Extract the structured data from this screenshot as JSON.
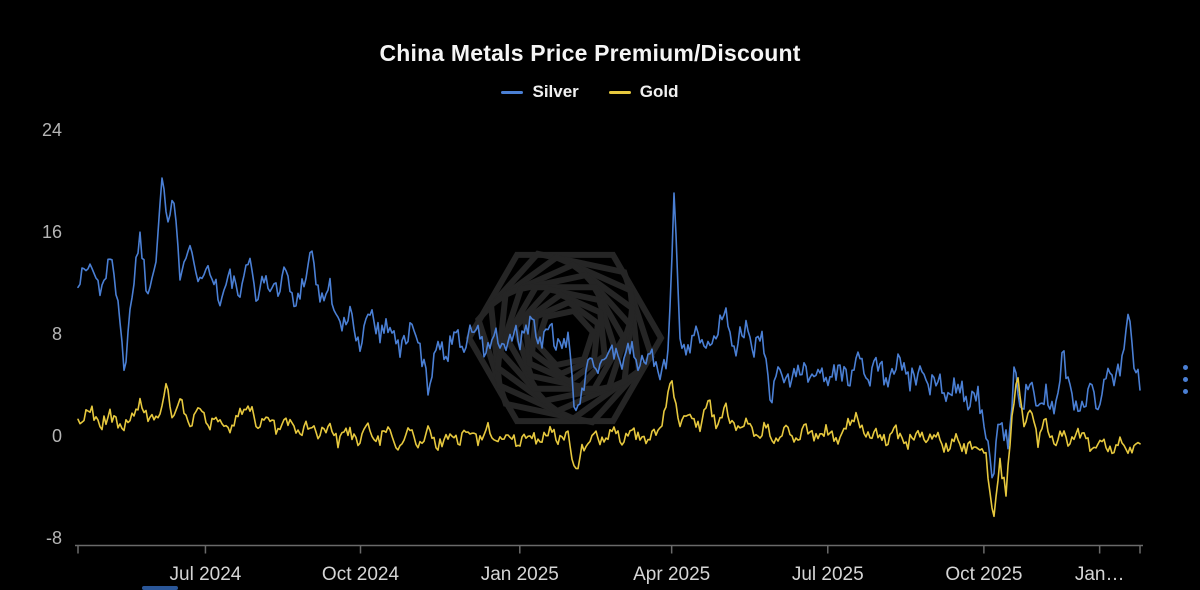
{
  "chart": {
    "colors": {
      "background": "#000000",
      "axis": "#6a6a6a",
      "x_tick_label": "#d5d5d5",
      "y_tick_label": "#b5b5b5",
      "watermark": "#252525",
      "menu_dots": "#4a7fd4"
    },
    "menu_icon": "kebab-menu-icon"
  },
  "chart_data": {
    "type": "line",
    "title": "China Metals Price Premium/Discount",
    "legend_position": "top-center",
    "grid": false,
    "x_axis": {
      "tick_labels": [
        "Jul 2024",
        "Oct 2024",
        "Jan 2025",
        "Apr 2025",
        "Jul 2025",
        "Oct 2025",
        "Jan…"
      ],
      "tick_positions": [
        0.12,
        0.266,
        0.416,
        0.559,
        0.706,
        0.853,
        0.962
      ]
    },
    "y_axis": {
      "tick_labels": [
        "24",
        "16",
        "8",
        "0",
        "-8"
      ],
      "tick_values": [
        24,
        16,
        8,
        0,
        -8
      ],
      "min": -8,
      "max": 24
    },
    "series": [
      {
        "name": "Silver",
        "color": "#4a7fd4",
        "noise_amplitude": 0.85,
        "points": [
          [
            0.0,
            12.2
          ],
          [
            0.011,
            13.5
          ],
          [
            0.021,
            11.5
          ],
          [
            0.03,
            13.8
          ],
          [
            0.038,
            11.0
          ],
          [
            0.044,
            4.8
          ],
          [
            0.051,
            11.5
          ],
          [
            0.058,
            15.8
          ],
          [
            0.066,
            11.0
          ],
          [
            0.073,
            14.0
          ],
          [
            0.079,
            20.6
          ],
          [
            0.085,
            16.5
          ],
          [
            0.089,
            18.8
          ],
          [
            0.096,
            13.0
          ],
          [
            0.105,
            15.5
          ],
          [
            0.115,
            12.0
          ],
          [
            0.124,
            13.5
          ],
          [
            0.134,
            10.5
          ],
          [
            0.143,
            12.5
          ],
          [
            0.153,
            11.0
          ],
          [
            0.162,
            13.8
          ],
          [
            0.169,
            10.8
          ],
          [
            0.176,
            12.5
          ],
          [
            0.186,
            11.2
          ],
          [
            0.195,
            13.2
          ],
          [
            0.204,
            10.0
          ],
          [
            0.214,
            12.8
          ],
          [
            0.22,
            14.5
          ],
          [
            0.228,
            10.5
          ],
          [
            0.237,
            11.8
          ],
          [
            0.247,
            8.2
          ],
          [
            0.256,
            9.5
          ],
          [
            0.266,
            7.2
          ],
          [
            0.275,
            10.2
          ],
          [
            0.284,
            8.0
          ],
          [
            0.294,
            9.0
          ],
          [
            0.303,
            6.5
          ],
          [
            0.313,
            8.5
          ],
          [
            0.322,
            7.0
          ],
          [
            0.33,
            3.6
          ],
          [
            0.337,
            7.5
          ],
          [
            0.346,
            6.0
          ],
          [
            0.355,
            8.5
          ],
          [
            0.364,
            7.0
          ],
          [
            0.374,
            8.8
          ],
          [
            0.383,
            6.5
          ],
          [
            0.393,
            8.0
          ],
          [
            0.402,
            6.2
          ],
          [
            0.411,
            8.5
          ],
          [
            0.416,
            7.0
          ],
          [
            0.426,
            9.3
          ],
          [
            0.435,
            7.0
          ],
          [
            0.444,
            8.8
          ],
          [
            0.454,
            6.5
          ],
          [
            0.463,
            7.5
          ],
          [
            0.468,
            1.9
          ],
          [
            0.475,
            3.0
          ],
          [
            0.482,
            6.5
          ],
          [
            0.492,
            5.5
          ],
          [
            0.501,
            7.2
          ],
          [
            0.51,
            5.8
          ],
          [
            0.52,
            6.8
          ],
          [
            0.529,
            5.5
          ],
          [
            0.539,
            6.5
          ],
          [
            0.548,
            5.0
          ],
          [
            0.556,
            6.0
          ],
          [
            0.561,
            19.2
          ],
          [
            0.567,
            8.0
          ],
          [
            0.574,
            6.5
          ],
          [
            0.581,
            9.0
          ],
          [
            0.59,
            6.2
          ],
          [
            0.6,
            8.0
          ],
          [
            0.609,
            9.8
          ],
          [
            0.619,
            7.0
          ],
          [
            0.628,
            8.5
          ],
          [
            0.637,
            6.5
          ],
          [
            0.644,
            8.8
          ],
          [
            0.652,
            2.4
          ],
          [
            0.659,
            5.5
          ],
          [
            0.669,
            4.2
          ],
          [
            0.678,
            5.8
          ],
          [
            0.687,
            4.5
          ],
          [
            0.697,
            5.5
          ],
          [
            0.706,
            4.2
          ],
          [
            0.716,
            5.5
          ],
          [
            0.725,
            4.2
          ],
          [
            0.734,
            6.2
          ],
          [
            0.744,
            4.5
          ],
          [
            0.753,
            5.8
          ],
          [
            0.763,
            4.0
          ],
          [
            0.772,
            6.0
          ],
          [
            0.782,
            4.2
          ],
          [
            0.791,
            5.0
          ],
          [
            0.8,
            3.6
          ],
          [
            0.81,
            4.8
          ],
          [
            0.819,
            3.2
          ],
          [
            0.829,
            4.5
          ],
          [
            0.838,
            2.6
          ],
          [
            0.847,
            3.5
          ],
          [
            0.854,
            0.6
          ],
          [
            0.861,
            -3.8
          ],
          [
            0.868,
            1.5
          ],
          [
            0.876,
            -1.0
          ],
          [
            0.882,
            5.8
          ],
          [
            0.889,
            2.0
          ],
          [
            0.896,
            4.5
          ],
          [
            0.904,
            1.5
          ],
          [
            0.911,
            3.5
          ],
          [
            0.92,
            2.0
          ],
          [
            0.927,
            6.5
          ],
          [
            0.936,
            3.0
          ],
          [
            0.943,
            2.0
          ],
          [
            0.953,
            3.5
          ],
          [
            0.962,
            2.5
          ],
          [
            0.97,
            5.5
          ],
          [
            0.976,
            4.0
          ],
          [
            0.983,
            6.0
          ],
          [
            0.989,
            9.5
          ],
          [
            0.994,
            5.5
          ],
          [
            1.0,
            4.2
          ]
        ]
      },
      {
        "name": "Gold",
        "color": "#e6c83e",
        "noise_amplitude": 0.5,
        "points": [
          [
            0.0,
            1.0
          ],
          [
            0.011,
            2.2
          ],
          [
            0.021,
            0.8
          ],
          [
            0.03,
            1.8
          ],
          [
            0.04,
            0.5
          ],
          [
            0.049,
            1.5
          ],
          [
            0.058,
            2.5
          ],
          [
            0.068,
            1.0
          ],
          [
            0.077,
            2.0
          ],
          [
            0.083,
            3.9
          ],
          [
            0.089,
            1.5
          ],
          [
            0.096,
            2.8
          ],
          [
            0.105,
            1.0
          ],
          [
            0.115,
            2.0
          ],
          [
            0.124,
            0.8
          ],
          [
            0.134,
            1.5
          ],
          [
            0.143,
            0.5
          ],
          [
            0.153,
            1.8
          ],
          [
            0.162,
            2.4
          ],
          [
            0.169,
            0.8
          ],
          [
            0.179,
            1.5
          ],
          [
            0.188,
            0.3
          ],
          [
            0.198,
            1.2
          ],
          [
            0.207,
            0.2
          ],
          [
            0.217,
            1.0
          ],
          [
            0.226,
            0.0
          ],
          [
            0.235,
            0.8
          ],
          [
            0.245,
            -0.5
          ],
          [
            0.254,
            0.5
          ],
          [
            0.264,
            -0.3
          ],
          [
            0.273,
            0.8
          ],
          [
            0.282,
            -0.5
          ],
          [
            0.292,
            0.5
          ],
          [
            0.301,
            -0.8
          ],
          [
            0.311,
            0.3
          ],
          [
            0.32,
            -0.5
          ],
          [
            0.33,
            0.5
          ],
          [
            0.339,
            -0.8
          ],
          [
            0.348,
            0.2
          ],
          [
            0.358,
            -0.5
          ],
          [
            0.367,
            0.5
          ],
          [
            0.377,
            -0.3
          ],
          [
            0.386,
            0.6
          ],
          [
            0.395,
            -0.5
          ],
          [
            0.405,
            0.3
          ],
          [
            0.414,
            -0.6
          ],
          [
            0.424,
            0.4
          ],
          [
            0.433,
            -0.5
          ],
          [
            0.443,
            0.5
          ],
          [
            0.452,
            -0.3
          ],
          [
            0.461,
            0.2
          ],
          [
            0.468,
            -3.0
          ],
          [
            0.475,
            -1.0
          ],
          [
            0.484,
            0.3
          ],
          [
            0.493,
            -0.5
          ],
          [
            0.503,
            0.5
          ],
          [
            0.512,
            -0.3
          ],
          [
            0.522,
            0.5
          ],
          [
            0.531,
            -0.5
          ],
          [
            0.54,
            0.3
          ],
          [
            0.55,
            0.8
          ],
          [
            0.559,
            4.3
          ],
          [
            0.567,
            1.0
          ],
          [
            0.576,
            2.0
          ],
          [
            0.586,
            0.5
          ],
          [
            0.593,
            2.8
          ],
          [
            0.601,
            1.0
          ],
          [
            0.61,
            2.2
          ],
          [
            0.62,
            0.3
          ],
          [
            0.629,
            1.2
          ],
          [
            0.638,
            -0.3
          ],
          [
            0.648,
            0.8
          ],
          [
            0.657,
            -0.5
          ],
          [
            0.667,
            0.5
          ],
          [
            0.676,
            -0.3
          ],
          [
            0.685,
            0.8
          ],
          [
            0.695,
            -0.2
          ],
          [
            0.704,
            0.5
          ],
          [
            0.714,
            -0.5
          ],
          [
            0.723,
            0.8
          ],
          [
            0.732,
            1.5
          ],
          [
            0.742,
            -0.3
          ],
          [
            0.751,
            0.5
          ],
          [
            0.761,
            -0.5
          ],
          [
            0.77,
            0.5
          ],
          [
            0.78,
            -0.8
          ],
          [
            0.789,
            0.3
          ],
          [
            0.798,
            -0.5
          ],
          [
            0.808,
            0.2
          ],
          [
            0.817,
            -1.0
          ],
          [
            0.827,
            -0.3
          ],
          [
            0.836,
            -1.2
          ],
          [
            0.845,
            -0.5
          ],
          [
            0.855,
            -1.5
          ],
          [
            0.862,
            -6.8
          ],
          [
            0.868,
            -2.0
          ],
          [
            0.874,
            -4.5
          ],
          [
            0.879,
            1.0
          ],
          [
            0.885,
            4.8
          ],
          [
            0.891,
            0.5
          ],
          [
            0.896,
            2.5
          ],
          [
            0.904,
            -0.5
          ],
          [
            0.911,
            1.5
          ],
          [
            0.919,
            -1.0
          ],
          [
            0.927,
            0.5
          ],
          [
            0.934,
            -0.8
          ],
          [
            0.943,
            0.3
          ],
          [
            0.953,
            -0.8
          ],
          [
            0.962,
            -0.3
          ],
          [
            0.972,
            -1.0
          ],
          [
            0.981,
            -0.5
          ],
          [
            0.99,
            -1.2
          ],
          [
            1.0,
            -0.8
          ]
        ]
      }
    ]
  }
}
